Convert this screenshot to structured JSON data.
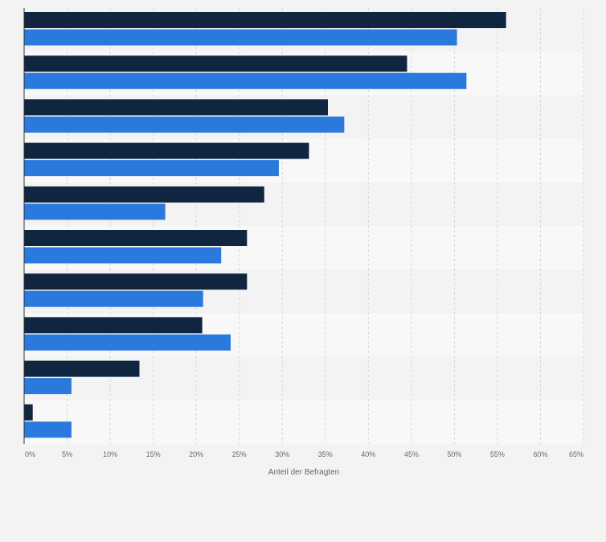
{
  "chart_data": {
    "type": "bar",
    "orientation": "horizontal",
    "title": "",
    "xlabel": "Anteil der Befragten",
    "ylabel": "",
    "xlim": [
      0,
      65
    ],
    "grid": true,
    "legend": "none",
    "tick_labels": [
      "0%",
      "5%",
      "10%",
      "15%",
      "20%",
      "25%",
      "30%",
      "35%",
      "40%",
      "45%",
      "50%",
      "55%",
      "60%",
      "65%"
    ],
    "series": [
      {
        "color": "#0f2540",
        "values": [
          56,
          44.5,
          35.3,
          33.1,
          27.9,
          25.9,
          25.9,
          20.7,
          13.4,
          1
        ]
      },
      {
        "color": "#2a79dc",
        "values": [
          50.3,
          51.4,
          37.2,
          29.6,
          16.4,
          22.9,
          20.8,
          24,
          5.5,
          5.5
        ]
      }
    ]
  },
  "colors": {
    "background": "#f3f3f3",
    "band_light": "#f8f8f8",
    "grid": "#d6d6d6",
    "axis": "#333333"
  }
}
